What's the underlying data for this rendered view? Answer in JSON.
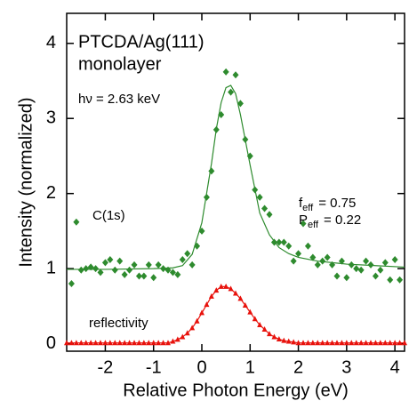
{
  "chart_data": {
    "type": "scatter",
    "xlabel": "Relative Photon Energy (eV)",
    "ylabel": "Intensity (normalized)",
    "xlim": [
      -2.8,
      4.2
    ],
    "ylim": [
      -0.1,
      4.4
    ],
    "xticks": [
      -2,
      -1,
      0,
      1,
      2,
      3,
      4
    ],
    "yticks": [
      0,
      1,
      2,
      3,
      4
    ],
    "annotations": [
      {
        "text": "PTCDA/Ag(111)"
      },
      {
        "text": "monolayer"
      },
      {
        "text": "hν = 2.63 keV"
      },
      {
        "text": "C(1s)"
      },
      {
        "text": "reflectivity"
      },
      {
        "base": "f",
        "sub": "eff",
        "text": "= 0.75"
      },
      {
        "base": "P",
        "sub": "eff",
        "text": "= 0.22"
      }
    ],
    "series": [
      {
        "marker": "diamond",
        "color": "#2e8b2e",
        "x": [
          -2.7,
          -2.6,
          -2.5,
          -2.4,
          -2.3,
          -2.2,
          -2.1,
          -2.0,
          -1.9,
          -1.8,
          -1.7,
          -1.6,
          -1.5,
          -1.4,
          -1.3,
          -1.2,
          -1.1,
          -1.0,
          -0.9,
          -0.8,
          -0.7,
          -0.6,
          -0.5,
          -0.4,
          -0.3,
          -0.2,
          -0.1,
          0,
          0.1,
          0.2,
          0.3,
          0.4,
          0.5,
          0.6,
          0.7,
          0.8,
          0.9,
          1.0,
          1.1,
          1.2,
          1.3,
          1.4,
          1.5,
          1.6,
          1.7,
          1.8,
          1.9,
          2.0,
          2.1,
          2.2,
          2.3,
          2.4,
          2.5,
          2.6,
          2.7,
          2.8,
          2.9,
          3.0,
          3.1,
          3.2,
          3.3,
          3.4,
          3.5,
          3.6,
          3.7,
          3.8,
          3.9,
          4.0,
          4.1
        ],
        "values": [
          0.8,
          1.62,
          0.98,
          1.0,
          1.02,
          1.0,
          0.95,
          1.08,
          1.12,
          0.98,
          1.1,
          0.92,
          0.98,
          1.05,
          0.9,
          0.9,
          1.05,
          0.88,
          1.05,
          1.0,
          0.98,
          0.95,
          0.92,
          1.12,
          1.2,
          1.05,
          1.3,
          1.5,
          1.95,
          2.3,
          2.85,
          3.05,
          3.62,
          3.35,
          3.58,
          3.2,
          2.72,
          2.5,
          2.05,
          1.95,
          1.8,
          1.72,
          1.35,
          1.35,
          1.35,
          1.3,
          1.1,
          1.2,
          1.6,
          1.3,
          1.15,
          1.05,
          1.1,
          1.15,
          1.05,
          0.9,
          1.1,
          0.88,
          1.05,
          1.0,
          0.98,
          1.1,
          1.05,
          0.9,
          0.98,
          1.08,
          0.85,
          1.12,
          0.85
        ]
      },
      {
        "marker": "none",
        "line": true,
        "color": "#2e8b2e",
        "x": [
          -2.8,
          -2.0,
          -1.0,
          -0.6,
          -0.4,
          -0.2,
          0,
          0.2,
          0.3,
          0.4,
          0.5,
          0.6,
          0.7,
          0.8,
          1.0,
          1.2,
          1.4,
          1.6,
          1.8,
          2.0,
          2.4,
          3.0,
          3.6,
          4.2
        ],
        "values": [
          0.99,
          0.99,
          1.0,
          1.01,
          1.04,
          1.19,
          1.61,
          2.4,
          2.86,
          3.21,
          3.41,
          3.44,
          3.33,
          3.05,
          2.38,
          1.74,
          1.45,
          1.28,
          1.2,
          1.15,
          1.1,
          1.06,
          1.04,
          1.02
        ]
      },
      {
        "marker": "triangle",
        "line": true,
        "color": "#e8120c",
        "x": [
          -2.8,
          -2.7,
          -2.6,
          -2.5,
          -2.4,
          -2.3,
          -2.2,
          -2.1,
          -2.0,
          -1.9,
          -1.8,
          -1.7,
          -1.6,
          -1.5,
          -1.4,
          -1.3,
          -1.2,
          -1.1,
          -1.0,
          -0.9,
          -0.8,
          -0.7,
          -0.6,
          -0.5,
          -0.4,
          -0.3,
          -0.2,
          -0.1,
          0,
          0.1,
          0.2,
          0.3,
          0.4,
          0.5,
          0.6,
          0.7,
          0.8,
          0.9,
          1.0,
          1.1,
          1.2,
          1.3,
          1.4,
          1.5,
          1.6,
          1.7,
          1.8,
          1.9,
          2.0,
          2.1,
          2.2,
          2.3,
          2.4,
          2.5,
          2.6,
          2.7,
          2.8,
          2.9,
          3.0,
          3.1,
          3.2,
          3.3,
          3.4,
          3.5,
          3.6,
          3.7,
          3.8,
          3.9,
          4.0,
          4.1,
          4.2
        ],
        "values": [
          0.01,
          0.01,
          0.01,
          0.01,
          0.01,
          0.01,
          0.01,
          0.01,
          0.01,
          0.01,
          0.01,
          0.01,
          0.01,
          0.01,
          0.01,
          0.01,
          0.01,
          0.01,
          0.01,
          0.01,
          0.01,
          0.01,
          0.03,
          0.055,
          0.09,
          0.14,
          0.21,
          0.3,
          0.41,
          0.52,
          0.63,
          0.71,
          0.76,
          0.76,
          0.73,
          0.67,
          0.6,
          0.51,
          0.42,
          0.33,
          0.25,
          0.19,
          0.13,
          0.09,
          0.06,
          0.04,
          0.03,
          0.02,
          0.01,
          0.01,
          0.01,
          0.01,
          0.01,
          0.01,
          0.01,
          0.01,
          0.01,
          0.01,
          0.01,
          0.01,
          0.01,
          0.01,
          0.01,
          0.01,
          0.01,
          0.01,
          0.01,
          0.01,
          0.01,
          0.01,
          0.01
        ]
      }
    ]
  }
}
